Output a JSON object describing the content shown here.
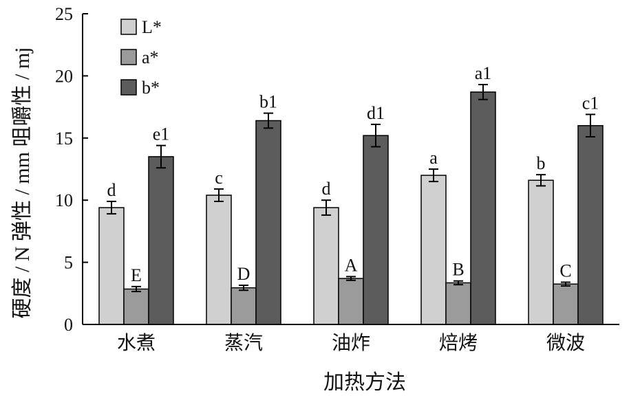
{
  "chart_data": {
    "type": "bar",
    "categories": [
      "水煮",
      "蒸汽",
      "油炸",
      "焙烤",
      "微波"
    ],
    "series": [
      {
        "name": "L*",
        "color": "#d0d0d0",
        "values": [
          9.4,
          10.4,
          9.4,
          12.0,
          11.6
        ],
        "errors": [
          0.5,
          0.5,
          0.6,
          0.5,
          0.45
        ],
        "labels": [
          "d",
          "c",
          "d",
          "a",
          "b"
        ]
      },
      {
        "name": "a*",
        "color": "#9b9b9b",
        "values": [
          2.85,
          2.95,
          3.7,
          3.35,
          3.25
        ],
        "errors": [
          0.2,
          0.2,
          0.15,
          0.15,
          0.15
        ],
        "labels": [
          "E",
          "D",
          "A",
          "B",
          "C"
        ]
      },
      {
        "name": "b*",
        "color": "#5c5c5c",
        "values": [
          13.5,
          16.4,
          15.2,
          18.7,
          16.0
        ],
        "errors": [
          0.9,
          0.6,
          0.9,
          0.6,
          0.9
        ],
        "labels": [
          "e1",
          "b1",
          "d1",
          "a1",
          "c1"
        ]
      }
    ],
    "xlabel": "加热方法",
    "ylabel": "硬度 / N   弹性 / mm   咀嚼性 / mj",
    "ylim": [
      0,
      25
    ],
    "yticks": [
      0,
      5,
      10,
      15,
      20,
      25
    ],
    "legend_position": "top-left",
    "grid": false
  }
}
